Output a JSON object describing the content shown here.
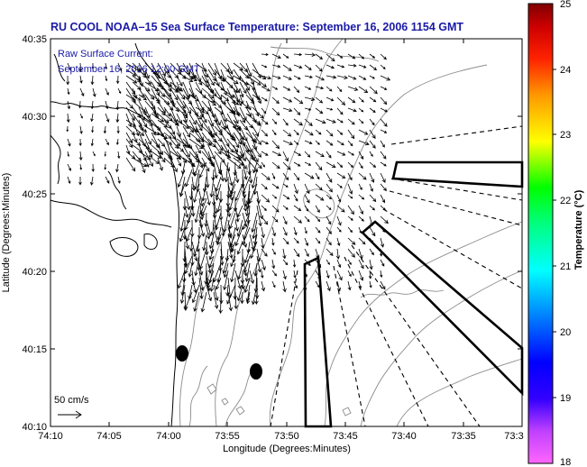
{
  "title": "RU COOL  NOAA–15  Sea Surface Temperature:  September 16, 2006 1154 GMT",
  "current_label_line1": "Raw Surface Current:",
  "current_label_line2": "September 16, 2006 12:00 GMT",
  "scale_label": "50 cm/s",
  "x_axis": {
    "label": "Longitude (Degrees:Minutes)",
    "ticks": [
      "74:10",
      "74:05",
      "74:00",
      "73:55",
      "73:50",
      "73:45",
      "73:40",
      "73:35",
      "73:3"
    ]
  },
  "y_axis": {
    "label": "Latitude (Degrees:Minutes)",
    "ticks": [
      "40:35",
      "40:30",
      "40:25",
      "40:20",
      "40:15",
      "40:10"
    ]
  },
  "colorbar": {
    "label": "Temperature (°C)",
    "ticks": [
      "25",
      "24",
      "23",
      "22",
      "21",
      "20",
      "19",
      "18"
    ],
    "range": [
      18,
      25
    ],
    "colors": [
      "#ff66ff",
      "#8a2be2",
      "#0000ff",
      "#00ffff",
      "#00ff00",
      "#ffff00",
      "#ff8000",
      "#ff0000",
      "#8b0000"
    ]
  },
  "colors": {
    "title": "#1a1aa6",
    "coast": "#000000",
    "bathymetry": "#888888",
    "vectors": "#000000"
  }
}
